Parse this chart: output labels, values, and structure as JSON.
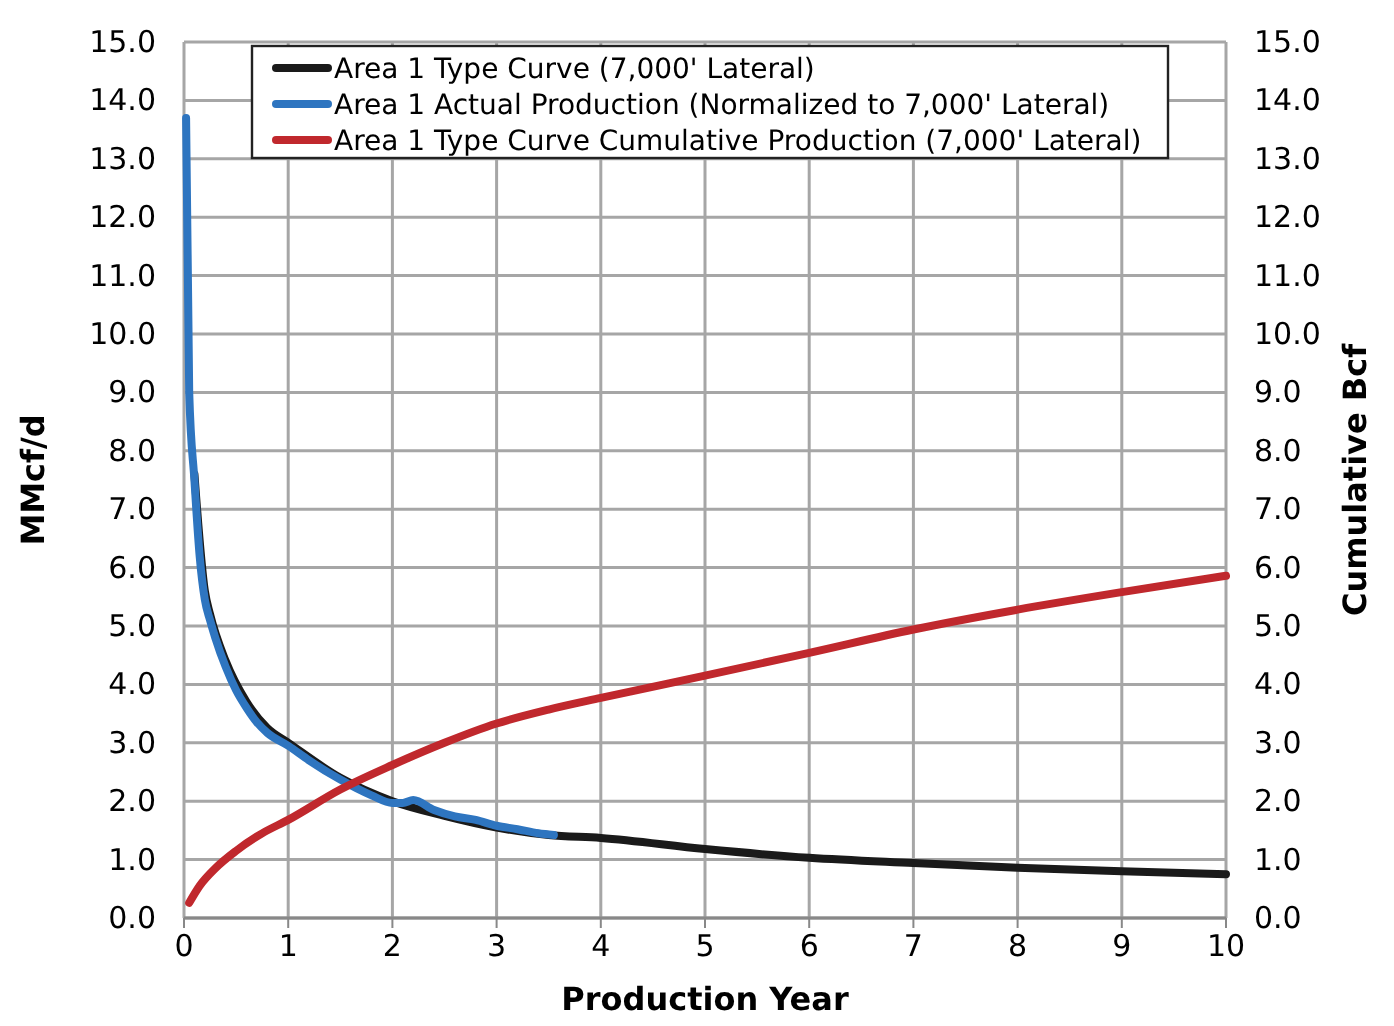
{
  "chart_data": {
    "type": "line",
    "xlabel": "Production Year",
    "ylabel": "MMcf/d",
    "y2label": "Cumulative Bcf",
    "xlim": [
      0,
      10
    ],
    "xticks": [
      0,
      1,
      2,
      3,
      4,
      5,
      6,
      7,
      8,
      9,
      10
    ],
    "ylim": [
      0,
      15
    ],
    "yticks": [
      {
        "value": 0,
        "label": "0.0"
      },
      {
        "value": 1,
        "label": "1.0"
      },
      {
        "value": 2,
        "label": "2.0"
      },
      {
        "value": 3,
        "label": "3.0"
      },
      {
        "value": 4,
        "label": "4.0"
      },
      {
        "value": 5,
        "label": "5.0"
      },
      {
        "value": 6,
        "label": "6.0"
      },
      {
        "value": 7,
        "label": "7.0"
      },
      {
        "value": 8,
        "label": "8.0"
      },
      {
        "value": 9,
        "label": "9.0"
      },
      {
        "value": 10,
        "label": "10.0"
      },
      {
        "value": 11,
        "label": "11.0"
      },
      {
        "value": 12,
        "label": "12.0"
      },
      {
        "value": 13,
        "label": "13.0"
      },
      {
        "value": 14,
        "label": "14.0"
      },
      {
        "value": 15,
        "label": "15.0"
      }
    ],
    "y2lim": [
      0,
      15
    ],
    "y2ticks": [
      {
        "value": 0,
        "label": "0.0"
      },
      {
        "value": 1,
        "label": "1.0"
      },
      {
        "value": 2,
        "label": "2.0"
      },
      {
        "value": 3,
        "label": "3.0"
      },
      {
        "value": 4,
        "label": "4.0"
      },
      {
        "value": 5,
        "label": "5.0"
      },
      {
        "value": 6,
        "label": "6.0"
      },
      {
        "value": 7,
        "label": "7.0"
      },
      {
        "value": 8,
        "label": "8.0"
      },
      {
        "value": 9,
        "label": "9.0"
      },
      {
        "value": 10,
        "label": "10.0"
      },
      {
        "value": 11,
        "label": "11.0"
      },
      {
        "value": 12,
        "label": "12.0"
      },
      {
        "value": 13,
        "label": "13.0"
      },
      {
        "value": 14,
        "label": "14.0"
      },
      {
        "value": 15,
        "label": "15.0"
      }
    ],
    "grid": true,
    "legend": "top",
    "marker": "none",
    "line_style": "solid",
    "series": [
      {
        "name": "Area 1 Type Curve (7,000' Lateral)",
        "color": "#1a1a1a",
        "x": [
          0.1,
          0.2,
          0.25,
          0.4,
          0.6,
          0.8,
          1,
          1.5,
          2,
          2.5,
          3,
          3.5,
          4,
          5,
          6,
          7,
          8,
          9,
          10
        ],
        "values": [
          7.6,
          5.6,
          5.2,
          4.4,
          3.7,
          3.25,
          3.0,
          2.4,
          2.0,
          1.75,
          1.55,
          1.42,
          1.37,
          1.18,
          1.03,
          0.94,
          0.86,
          0.8,
          0.75
        ]
      },
      {
        "name": "Area 1 Actual Production (Normalized to 7,000' Lateral)",
        "color": "#2e75c0",
        "x": [
          0.02,
          0.05,
          0.1,
          0.15,
          0.2,
          0.25,
          0.3,
          0.4,
          0.5,
          0.6,
          0.7,
          0.8,
          1,
          1.2,
          1.5,
          1.8,
          2,
          2.1,
          2.2,
          2.4,
          2.6,
          2.8,
          3,
          3.2,
          3.4,
          3.55
        ],
        "values": [
          13.7,
          9.0,
          7.5,
          6.2,
          5.45,
          5.1,
          4.8,
          4.3,
          3.9,
          3.6,
          3.35,
          3.17,
          2.95,
          2.7,
          2.37,
          2.1,
          1.97,
          1.97,
          2.02,
          1.85,
          1.74,
          1.68,
          1.58,
          1.52,
          1.45,
          1.42
        ]
      },
      {
        "name": "Area 1 Type Curve Cumulative Production (7,000' Lateral)",
        "color": "#c0282d",
        "axis": "y2",
        "x": [
          0.05,
          0.15,
          0.3,
          0.5,
          0.75,
          1,
          1.5,
          2,
          2.5,
          3,
          3.5,
          4,
          5,
          6,
          7,
          8,
          9,
          10
        ],
        "values": [
          0.26,
          0.55,
          0.85,
          1.15,
          1.45,
          1.68,
          2.2,
          2.62,
          3.0,
          3.33,
          3.57,
          3.77,
          4.15,
          4.54,
          4.94,
          5.28,
          5.58,
          5.86
        ]
      }
    ]
  }
}
